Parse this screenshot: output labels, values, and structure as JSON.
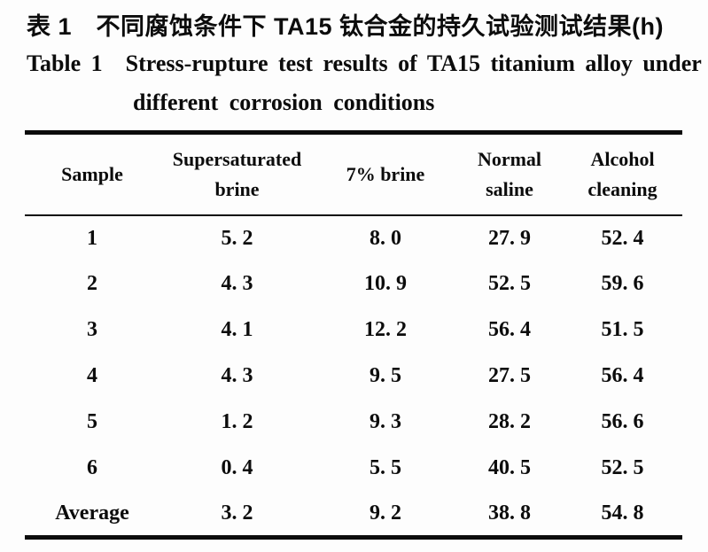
{
  "title": {
    "zh": "表 1 不同腐蚀条件下 TA15 钛合金的持久试验测试结果(h)",
    "en_line1": "Table 1 Stress-rupture test results of TA15 titanium alloy under",
    "en_line2": "different corrosion conditions"
  },
  "table": {
    "columns": [
      "Sample",
      "Supersaturated brine",
      "7% brine",
      "Normal saline",
      "Alcohol cleaning"
    ],
    "rows": [
      [
        "1",
        "5. 2",
        "8. 0",
        "27. 9",
        "52. 4"
      ],
      [
        "2",
        "4. 3",
        "10. 9",
        "52. 5",
        "59. 6"
      ],
      [
        "3",
        "4. 1",
        "12. 2",
        "56. 4",
        "51. 5"
      ],
      [
        "4",
        "4. 3",
        "9. 5",
        "27. 5",
        "56. 4"
      ],
      [
        "5",
        "1. 2",
        "9. 3",
        "28. 2",
        "56. 6"
      ],
      [
        "6",
        "0. 4",
        "5. 5",
        "40. 5",
        "52. 5"
      ],
      [
        "Average",
        "3. 2",
        "9. 2",
        "38. 8",
        "54. 8"
      ]
    ]
  },
  "colors": {
    "ink": "#0c0c0c",
    "paper": "#fdfdfd"
  },
  "unit": "(h)"
}
